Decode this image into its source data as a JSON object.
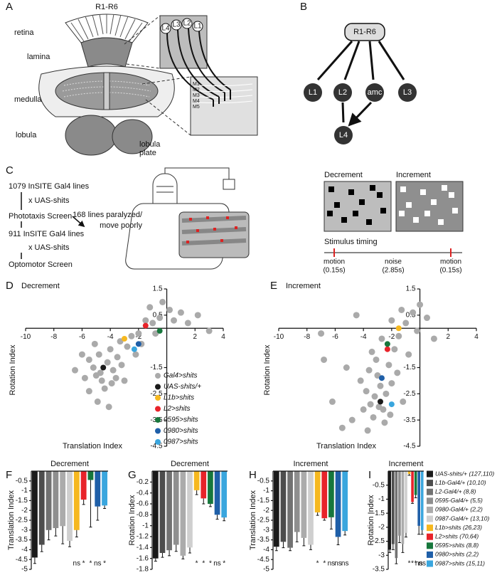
{
  "panel_labels": [
    "A",
    "B",
    "C",
    "D",
    "E",
    "F",
    "G",
    "H",
    "I"
  ],
  "anatomy": {
    "r16": "R1-R6",
    "retina": "retina",
    "lamina": "lamina",
    "medulla": "medulla",
    "lobula": "lobula",
    "lobula_plate": [
      "lobula",
      "plate"
    ],
    "cells": [
      "L4",
      "L3",
      "L2",
      "L1"
    ],
    "layers": [
      "M1",
      "M2",
      "M3",
      "M4",
      "M5"
    ]
  },
  "circuit": {
    "nodes": [
      "R1-R6",
      "L1",
      "L2",
      "amc",
      "L3",
      "L4"
    ]
  },
  "screen": {
    "steps": [
      "1079 InSITE Gal4 lines",
      "x UAS-shits",
      "Phototaxis Screen",
      "911 InSITE Gal4 lines",
      "x UAS-shits",
      "Optomotor Screen"
    ],
    "side": [
      "168 lines paralyzed/",
      "move poorly"
    ],
    "stimuli": [
      "Decrement",
      "Increment"
    ],
    "timing_title": "Stimulus timing",
    "timing": [
      "motion",
      "(0.15s)",
      "noise",
      "(2.85s)",
      "motion",
      "(0.15s)"
    ]
  },
  "bar_legend": {
    "labels": [
      "UAS-shits/+ (127,110)",
      "L1b-Gal4/+ (10,10)",
      "L2-Gal4/+ (8,8)",
      "0595-Gal4/+ (5,5)",
      "0980-Gal4/+ (2,2)",
      "0987-Gal4/+ (13,10)",
      "L1b>shits (26,23)",
      "L2>shits (70,64)",
      "0595>shits (8,8)",
      "0980>shits (2,2)",
      "0987>shits (15,11)"
    ],
    "colors": [
      "#1a1a1a",
      "#4d4d4d",
      "#727272",
      "#8f8f8f",
      "#ababab",
      "#cfcfcf",
      "#f6b81f",
      "#e8232a",
      "#17773c",
      "#1f5fa8",
      "#3aa6de"
    ]
  },
  "chart_data": [
    {
      "type": "scatter",
      "title": "Decrement",
      "xlabel": "Translation Index",
      "ylabel": "Rotation Index",
      "xlim": [
        -10,
        4
      ],
      "ylim": [
        -4.5,
        1.5
      ],
      "xticks": [
        -10,
        -8,
        -6,
        -4,
        -2,
        2,
        4
      ],
      "yticks": [
        1.5,
        0.5,
        -1.5,
        -2.5,
        -3.5,
        -4.5
      ],
      "legend": true,
      "series": [
        {
          "name": "Gal4>shits",
          "color": "#aaaaaa",
          "x": [
            -5.5,
            -5,
            -4.8,
            -4.2,
            -3.8,
            -4.6,
            -5.2,
            -3.5,
            -4,
            -3.2,
            -5.8,
            -4.4,
            -3.9,
            -2.8,
            -2.5,
            -2,
            -1.5,
            -1,
            -0.5,
            0.5,
            1,
            1.5,
            2.2,
            3,
            -1.2,
            -0.3,
            -6,
            -5.5,
            -4.9,
            -3,
            -6.5,
            -2.2,
            -1.8,
            -4.1,
            -3.3,
            0.2,
            -0.8,
            -5.1,
            -4.7,
            -3.6
          ],
          "y": [
            -1.2,
            -1.8,
            -1,
            -1.3,
            -1.6,
            -2,
            -1.5,
            -1.1,
            -0.8,
            -1.4,
            -1.9,
            -2.3,
            -2.1,
            -0.7,
            -0.3,
            -0.2,
            0.3,
            0.2,
            0.4,
            0.3,
            0.6,
            0.2,
            0.5,
            -0.1,
            0.8,
            1,
            -1,
            -2.4,
            -2.8,
            -2,
            -1.6,
            -1,
            -0.6,
            -3,
            -0.5,
            0.7,
            -0.2,
            -0.6,
            -1.7,
            -1.9
          ]
        },
        {
          "name": "UAS-shits/+",
          "color": "#1a1a1a",
          "x": [
            -4.5
          ],
          "y": [
            -1.5
          ]
        },
        {
          "name": "L1b>shits",
          "color": "#f6b81f",
          "x": [
            -3
          ],
          "y": [
            -0.4
          ]
        },
        {
          "name": "L2>shits",
          "color": "#e8232a",
          "x": [
            -1.5
          ],
          "y": [
            0.1
          ]
        },
        {
          "name": "0595>shits",
          "color": "#17773c",
          "x": [
            -0.5
          ],
          "y": [
            -0.1
          ]
        },
        {
          "name": "0980>shits",
          "color": "#1f5fa8",
          "x": [
            -2
          ],
          "y": [
            -0.6
          ]
        },
        {
          "name": "0987>shits",
          "color": "#3aa6de",
          "x": [
            -2.3
          ],
          "y": [
            -0.8
          ]
        }
      ]
    },
    {
      "type": "scatter",
      "title": "Increment",
      "xlabel": "Translation Index",
      "ylabel": "Rotation Index",
      "xlim": [
        -10,
        4
      ],
      "ylim": [
        -4.5,
        1.5
      ],
      "xticks": [
        -10,
        -8,
        -6,
        -4,
        -2,
        2,
        4
      ],
      "yticks": [
        1.5,
        0.5,
        -1.5,
        -2.5,
        -3.5,
        -4.5
      ],
      "legend": false,
      "series": [
        {
          "color": "#aaaaaa",
          "x": [
            -3.2,
            -2.8,
            -3.5,
            -2.6,
            -3,
            -3.8,
            -2.4,
            -3.3,
            -2.9,
            -3.6,
            -2.2,
            -4.2,
            -4,
            -2.5,
            -3.1,
            -1.8,
            -1.5,
            -1,
            -0.5,
            0.5,
            -2,
            -0.2,
            1,
            -4.5,
            -7,
            -6.2,
            -5.5,
            -4.8,
            -2,
            -1.6,
            -3.4,
            -2.7,
            -6.8,
            -1.2,
            -2.1,
            -3.7,
            -5.2,
            0,
            -0.8,
            -1.3
          ],
          "y": [
            -2.6,
            -2.2,
            -2.9,
            -3.1,
            -1.8,
            -2.4,
            -2.5,
            -3.4,
            -3,
            -1.6,
            -1.4,
            -2,
            -3.1,
            -3.6,
            -1.2,
            -0.8,
            -0.3,
            0.2,
            0.6,
            0.4,
            0.3,
            -0.1,
            -0.4,
            0.5,
            -0.2,
            -2.8,
            -3.8,
            -3.5,
            -2.1,
            -1.7,
            -0.9,
            -0.4,
            -1.2,
            -2.8,
            -3.3,
            -3.9,
            -1.5,
            0.9,
            -1,
            0.7
          ]
        },
        {
          "color": "#1a1a1a",
          "x": [
            -2.8
          ],
          "y": [
            -2.8
          ]
        },
        {
          "color": "#f6b81f",
          "x": [
            -1.5
          ],
          "y": [
            0
          ]
        },
        {
          "color": "#e8232a",
          "x": [
            -2.3
          ],
          "y": [
            -0.8
          ]
        },
        {
          "color": "#17773c",
          "x": [
            -2.3
          ],
          "y": [
            -0.6
          ]
        },
        {
          "color": "#1f5fa8",
          "x": [
            -2.7
          ],
          "y": [
            -1.9
          ]
        },
        {
          "color": "#3aa6de",
          "x": [
            -2
          ],
          "y": [
            -2.9
          ]
        }
      ]
    },
    {
      "type": "bar",
      "title": "Decrement",
      "ylabel": "Translation Index",
      "ylim": [
        -5,
        0
      ],
      "yticks": [
        -0.5,
        -1,
        -1.5,
        -2,
        -2.5,
        -3,
        -3.5,
        -4,
        -4.5,
        -5
      ],
      "values": [
        -4.4,
        -3.75,
        -3,
        -2.9,
        -2.8,
        -3.55,
        -3,
        -1.45,
        -0.45,
        -1.8,
        -1.75
      ],
      "errors": [
        0.3,
        0.35,
        0.5,
        0.4,
        0.9,
        0.3,
        0.35,
        0.25,
        2.4,
        0.7,
        0.15
      ],
      "annotations": [
        "ns",
        "*",
        "*",
        "ns",
        "*"
      ]
    },
    {
      "type": "bar",
      "title": "Decrement",
      "ylabel": "Rotation Index",
      "ylim": [
        -1.8,
        0
      ],
      "yticks": [
        -0.2,
        -0.4,
        -0.6,
        -0.8,
        -1,
        -1.2,
        -1.4,
        -1.6,
        -1.8
      ],
      "values": [
        -1.6,
        -1.5,
        -1.45,
        -1.35,
        -1.55,
        -1.4,
        -0.35,
        -0.5,
        -0.6,
        -0.8,
        -0.85
      ],
      "errors": [
        0.05,
        0.08,
        0.1,
        0.12,
        0.06,
        0.1,
        0.08,
        0.1,
        0.05,
        0.08,
        0.06
      ],
      "annotations": [
        "*",
        "*",
        "*",
        "ns",
        "*"
      ]
    },
    {
      "type": "bar",
      "title": "Increment",
      "ylabel": "Translation Index",
      "ylim": [
        -5,
        0
      ],
      "yticks": [
        -0.5,
        -1,
        -1.5,
        -2,
        -2.5,
        -3,
        -3.5,
        -4,
        -4.5,
        -5
      ],
      "values": [
        -3.85,
        -3.6,
        -3.9,
        -3.1,
        -3.4,
        -3.75,
        -2.1,
        -2.4,
        -2.35,
        -3.35,
        -3.05
      ],
      "errors": [
        0.2,
        0.3,
        0.15,
        0.5,
        0.4,
        0.25,
        0.15,
        0.1,
        0.6,
        0.4,
        0.2
      ],
      "annotations": [
        "*",
        "*",
        "ns",
        "ns",
        "ns"
      ]
    },
    {
      "type": "bar",
      "title": "Increment",
      "ylabel": "Rotation Index",
      "ylim": [
        -3.5,
        0
      ],
      "yticks": [
        -0.5,
        -1,
        -1.5,
        -2,
        -2.5,
        -3,
        -3.5
      ],
      "values": [
        -2.8,
        -2.6,
        -3.1,
        -2.3,
        -2.6,
        -2.2,
        -0.1,
        -1.1,
        -0.85,
        -1.95,
        -2.1
      ],
      "errors": [
        0.1,
        0.2,
        0.2,
        0.25,
        0.3,
        0.15,
        0.05,
        0.05,
        0.1,
        0.3,
        0.15
      ],
      "annotations": [
        "*",
        "*",
        "*",
        "ns",
        "ns"
      ]
    }
  ]
}
